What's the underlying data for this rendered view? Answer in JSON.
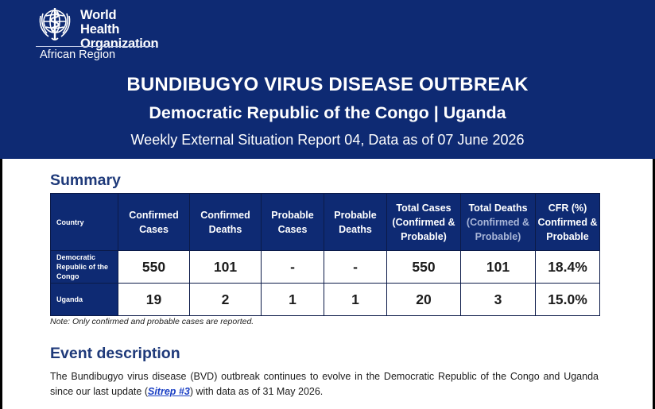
{
  "header": {
    "org_name_line1": "World Health",
    "org_name_line2": "Organization",
    "region": "African Region",
    "title": "BUNDIBUGYO VIRUS DISEASE OUTBREAK",
    "subtitle": "Democratic Republic of the Congo | Uganda",
    "report_line": "Weekly External Situation Report 04, Data as of 07 June 2026"
  },
  "summary": {
    "heading": "Summary",
    "columns": [
      "Country",
      "Confirmed Cases",
      "Confirmed Deaths",
      "Probable Cases",
      "Probable Deaths",
      "Total Cases (Confirmed & Probable)",
      "Total Deaths",
      "(Confirmed & Probable)",
      "CFR (%) Confirmed & Probable"
    ],
    "rows": [
      {
        "country": "Democratic Republic of the Congo",
        "confirmed_cases": "550",
        "confirmed_deaths": "101",
        "probable_cases": "-",
        "probable_deaths": "-",
        "total_cases": "550",
        "total_deaths": "101",
        "cfr": "18.4%"
      },
      {
        "country": "Uganda",
        "confirmed_cases": "19",
        "confirmed_deaths": "2",
        "probable_cases": "1",
        "probable_deaths": "1",
        "total_cases": "20",
        "total_deaths": "3",
        "cfr": "15.0%"
      }
    ],
    "note": "Note: Only confirmed and probable cases are reported."
  },
  "event": {
    "heading": "Event description",
    "text_before": "The Bundibugyo virus disease (BVD) outbreak continues to evolve in the Democratic Republic of the Congo and Uganda since our last update (",
    "link_text": "Sitrep #3",
    "text_after": ") with data as of 31 May 2026."
  },
  "colors": {
    "header_bg": "#0e2a73",
    "heading_blue": "#1f3a7a",
    "link": "#1a3fc4"
  },
  "icons": {
    "logo": "who-emblem-icon"
  }
}
